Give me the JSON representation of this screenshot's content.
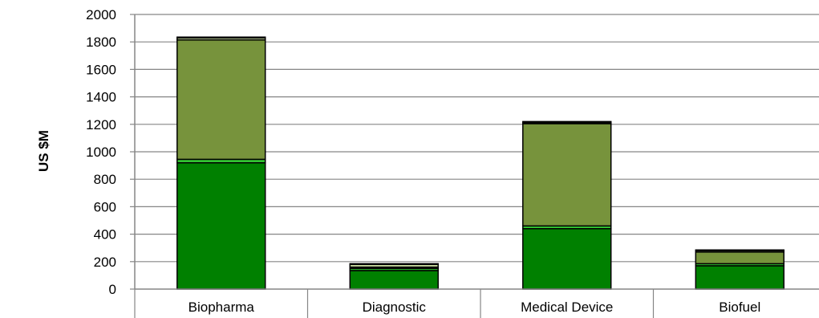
{
  "chart_data": {
    "type": "bar",
    "stacked": true,
    "title": "",
    "xlabel": "",
    "ylabel": "US $M",
    "ylim": [
      0,
      2000
    ],
    "yticks": [
      0,
      200,
      400,
      600,
      800,
      1000,
      1200,
      1400,
      1600,
      1800,
      2000
    ],
    "grid": true,
    "categories": [
      "Biopharma",
      "Diagnostic",
      "Medical Device",
      "Biofuel"
    ],
    "series": [
      {
        "values": [
          920,
          135,
          440,
          170
        ],
        "color": "#008000"
      },
      {
        "values": [
          25,
          15,
          20,
          15
        ],
        "color": "#33cc33"
      },
      {
        "values": [
          870,
          10,
          745,
          85
        ],
        "color": "#77933c"
      },
      {
        "values": [
          15,
          20,
          5,
          10
        ],
        "color": "#c3d69b"
      },
      {
        "values": [
          5,
          5,
          10,
          5
        ],
        "color": "#000000"
      }
    ]
  }
}
